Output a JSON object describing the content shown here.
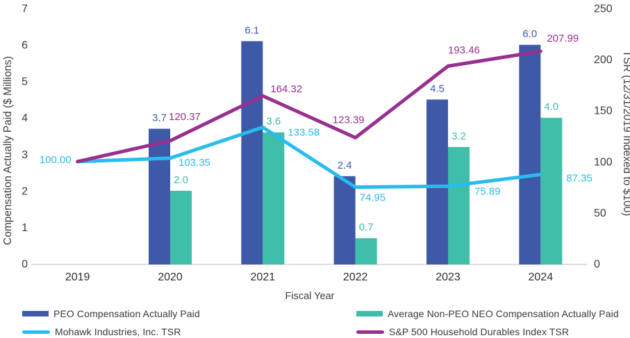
{
  "chart_data": {
    "type": "combo-bar-line",
    "categories": [
      "2019",
      "2020",
      "2021",
      "2022",
      "2023",
      "2024"
    ],
    "xlabel": "Fiscal Year",
    "grid": "off",
    "legend_position": "bottom-two-columns",
    "left_axis": {
      "label": "Compensation Actually Paid ($ Millions)",
      "min": 0,
      "max": 7,
      "ticks": [
        "0",
        "1",
        "2",
        "3",
        "4",
        "5",
        "6",
        "7"
      ]
    },
    "right_axis": {
      "label": "TSR (12/31/2019 Indexed to $100)",
      "min": 0,
      "max": 250,
      "ticks": [
        "0",
        "50",
        "100",
        "150",
        "200",
        "250"
      ]
    },
    "bar_series": [
      {
        "name": "PEO Compensation Actually Paid",
        "axis": "left",
        "color": "#3E59A8",
        "values": [
          null,
          3.7,
          6.1,
          2.4,
          4.5,
          6.0
        ],
        "labels": [
          "",
          "3.7",
          "6.1",
          "2.4",
          "4.5",
          "6.0"
        ]
      },
      {
        "name": "Average Non-PEO NEO Compensation Actually Paid",
        "axis": "left",
        "color": "#3FBEA9",
        "values": [
          null,
          2.0,
          3.6,
          0.7,
          3.2,
          4.0
        ],
        "labels": [
          "",
          "2.0",
          "3.6",
          "0.7",
          "3.2",
          "4.0"
        ]
      }
    ],
    "line_series": [
      {
        "name": "Mohawk Industries, Inc. TSR",
        "axis": "right",
        "color": "#28BCEE",
        "values": [
          100.0,
          103.35,
          133.58,
          74.95,
          75.89,
          87.35
        ],
        "labels": [
          "100.00",
          "103.35",
          "133.58",
          "74.95",
          "75.89",
          "87.35"
        ]
      },
      {
        "name": "S&P 500 Household Durables Index TSR",
        "axis": "right",
        "color": "#97308F",
        "values": [
          100.0,
          120.37,
          164.32,
          123.39,
          193.46,
          207.99
        ],
        "labels": [
          "",
          "120.37",
          "164.32",
          "123.39",
          "193.46",
          "207.99"
        ]
      }
    ],
    "colors": {
      "axis_text": "#404040",
      "tick_text": "#3b3b3b",
      "category_text": "#2e2e2e",
      "axis_line": "#D9D9D9",
      "background": "#FFFFFF"
    }
  }
}
